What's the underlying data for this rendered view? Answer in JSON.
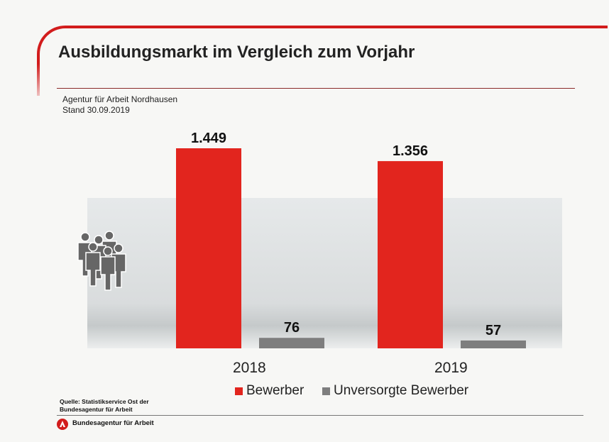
{
  "header": {
    "title": "Ausbildungsmarkt im Vergleich zum Vorjahr",
    "agency": "Agentur für Arbeit Nordhausen",
    "date": "Stand 30.09.2019"
  },
  "chart_data": {
    "type": "bar",
    "categories": [
      "2018",
      "2019"
    ],
    "series": [
      {
        "name": "Bewerber",
        "color": "#e2251e",
        "values": [
          1449,
          1356
        ],
        "labels": [
          "1.449",
          "1.356"
        ]
      },
      {
        "name": "Unversorgte Bewerber",
        "color": "#7e7e7e",
        "values": [
          76,
          57
        ],
        "labels": [
          "76",
          "57"
        ]
      }
    ],
    "legend": "bottom",
    "grid": false,
    "ylim": [
      0,
      1449
    ]
  },
  "footer": {
    "source": "Quelle: Statistikservice Ost der",
    "source2": "Bundesagentur für Arbeit",
    "brand": "Bundesagentur für Arbeit"
  },
  "icons": {
    "people": "people-group-icon",
    "logo": "ba-logo-icon"
  }
}
